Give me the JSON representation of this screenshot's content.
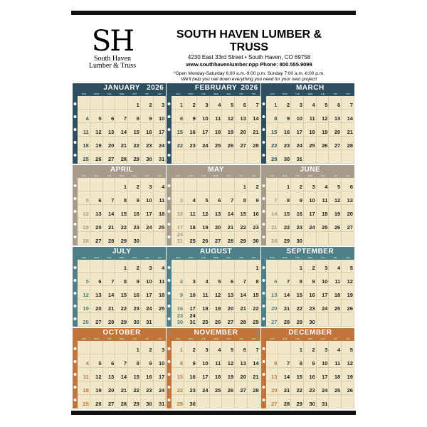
{
  "business": {
    "logo_mark": "SH",
    "logo_name_line1": "South Haven",
    "logo_name_line2": "Lumber & Truss",
    "name": "SOUTH HAVEN LUMBER & TRUSS",
    "address": "4230 East 33rd Street  •  South Haven, CO 69758",
    "web_phone": "www.southhavenlumber.npp    Phone: 800.555.9099",
    "hours": "*Open Monday-Saturday 6:00 a.m.-9:00 p.m. Sunday 7:00 a.m.-6:00 p.m.",
    "tagline": "We'll help you nail down everything you need for your next project!"
  },
  "weekdays": [
    "SUN",
    "MON",
    "TUE",
    "WED",
    "THU",
    "FRI",
    "SAT"
  ],
  "colors": {
    "row1": "#2e4f5f",
    "row2": "#a69b89",
    "row3": "#4f8087",
    "row4": "#c2743a",
    "paper": "#f0e8c8"
  },
  "months": [
    {
      "name": "JANUARY",
      "year": "2026",
      "start_weekday": 4,
      "days": 31,
      "row": 1
    },
    {
      "name": "FEBRUARY",
      "year": "2026",
      "start_weekday": 0,
      "days": 28,
      "row": 1
    },
    {
      "name": "MARCH",
      "start_weekday": 0,
      "days": 31,
      "row": 1
    },
    {
      "name": "APRIL",
      "start_weekday": 3,
      "days": 30,
      "row": 2
    },
    {
      "name": "MAY",
      "start_weekday": 5,
      "days": 31,
      "row": 2
    },
    {
      "name": "JUNE",
      "start_weekday": 1,
      "days": 30,
      "row": 2
    },
    {
      "name": "JULY",
      "start_weekday": 3,
      "days": 31,
      "row": 3
    },
    {
      "name": "AUGUST",
      "start_weekday": 6,
      "days": 31,
      "row": 3
    },
    {
      "name": "SEPTEMBER",
      "start_weekday": 2,
      "days": 30,
      "row": 3
    },
    {
      "name": "OCTOBER",
      "start_weekday": 4,
      "days": 31,
      "row": 4
    },
    {
      "name": "NOVEMBER",
      "start_weekday": 0,
      "days": 30,
      "row": 4
    },
    {
      "name": "DECEMBER",
      "start_weekday": 2,
      "days": 31,
      "row": 4
    }
  ]
}
